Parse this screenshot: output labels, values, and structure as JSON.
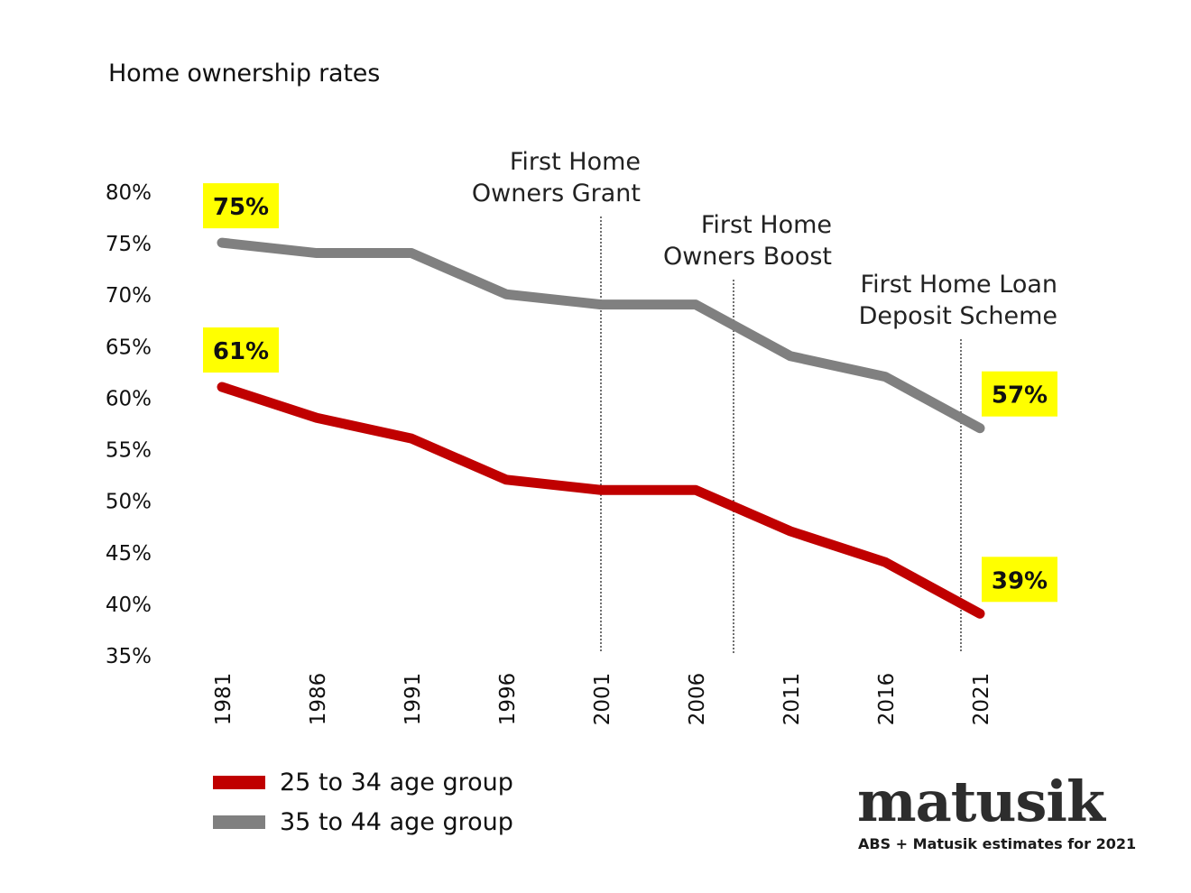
{
  "chart_data": {
    "type": "line",
    "title": "Home ownership rates",
    "categories": [
      "1981",
      "1986",
      "1991",
      "1996",
      "2001",
      "2006",
      "2011",
      "2016",
      "2021"
    ],
    "ylim": [
      35,
      80
    ],
    "yticks": [
      "80%",
      "75%",
      "70%",
      "65%",
      "60%",
      "55%",
      "50%",
      "45%",
      "40%",
      "35%"
    ],
    "series": [
      {
        "name": "25 to 34 age group",
        "color": "#c00000",
        "values": [
          61,
          58,
          56,
          52,
          51,
          51,
          47,
          44,
          39
        ],
        "labels": {
          "first": "61%",
          "last": "39%"
        }
      },
      {
        "name": "35 to 44 age group",
        "color": "#808080",
        "values": [
          75,
          74,
          74,
          70,
          69,
          69,
          64,
          62,
          57
        ],
        "labels": {
          "first": "75%",
          "last": "57%"
        }
      }
    ],
    "annotations": [
      {
        "at_year": 2001,
        "lines": [
          "First Home",
          "Owners Grant"
        ]
      },
      {
        "at_year": 2008,
        "lines": [
          "First Home",
          "Owners Boost"
        ]
      },
      {
        "at_year": 2020,
        "lines": [
          "First Home Loan",
          "Deposit Scheme"
        ]
      }
    ],
    "label_highlight": "#ffff00"
  },
  "legend": [
    {
      "name": "25 to 34 age group",
      "color": "#c00000"
    },
    {
      "name": "35 to 44 age group",
      "color": "#808080"
    }
  ],
  "brand": "matusik",
  "source": "ABS + Matusik estimates for 2021"
}
